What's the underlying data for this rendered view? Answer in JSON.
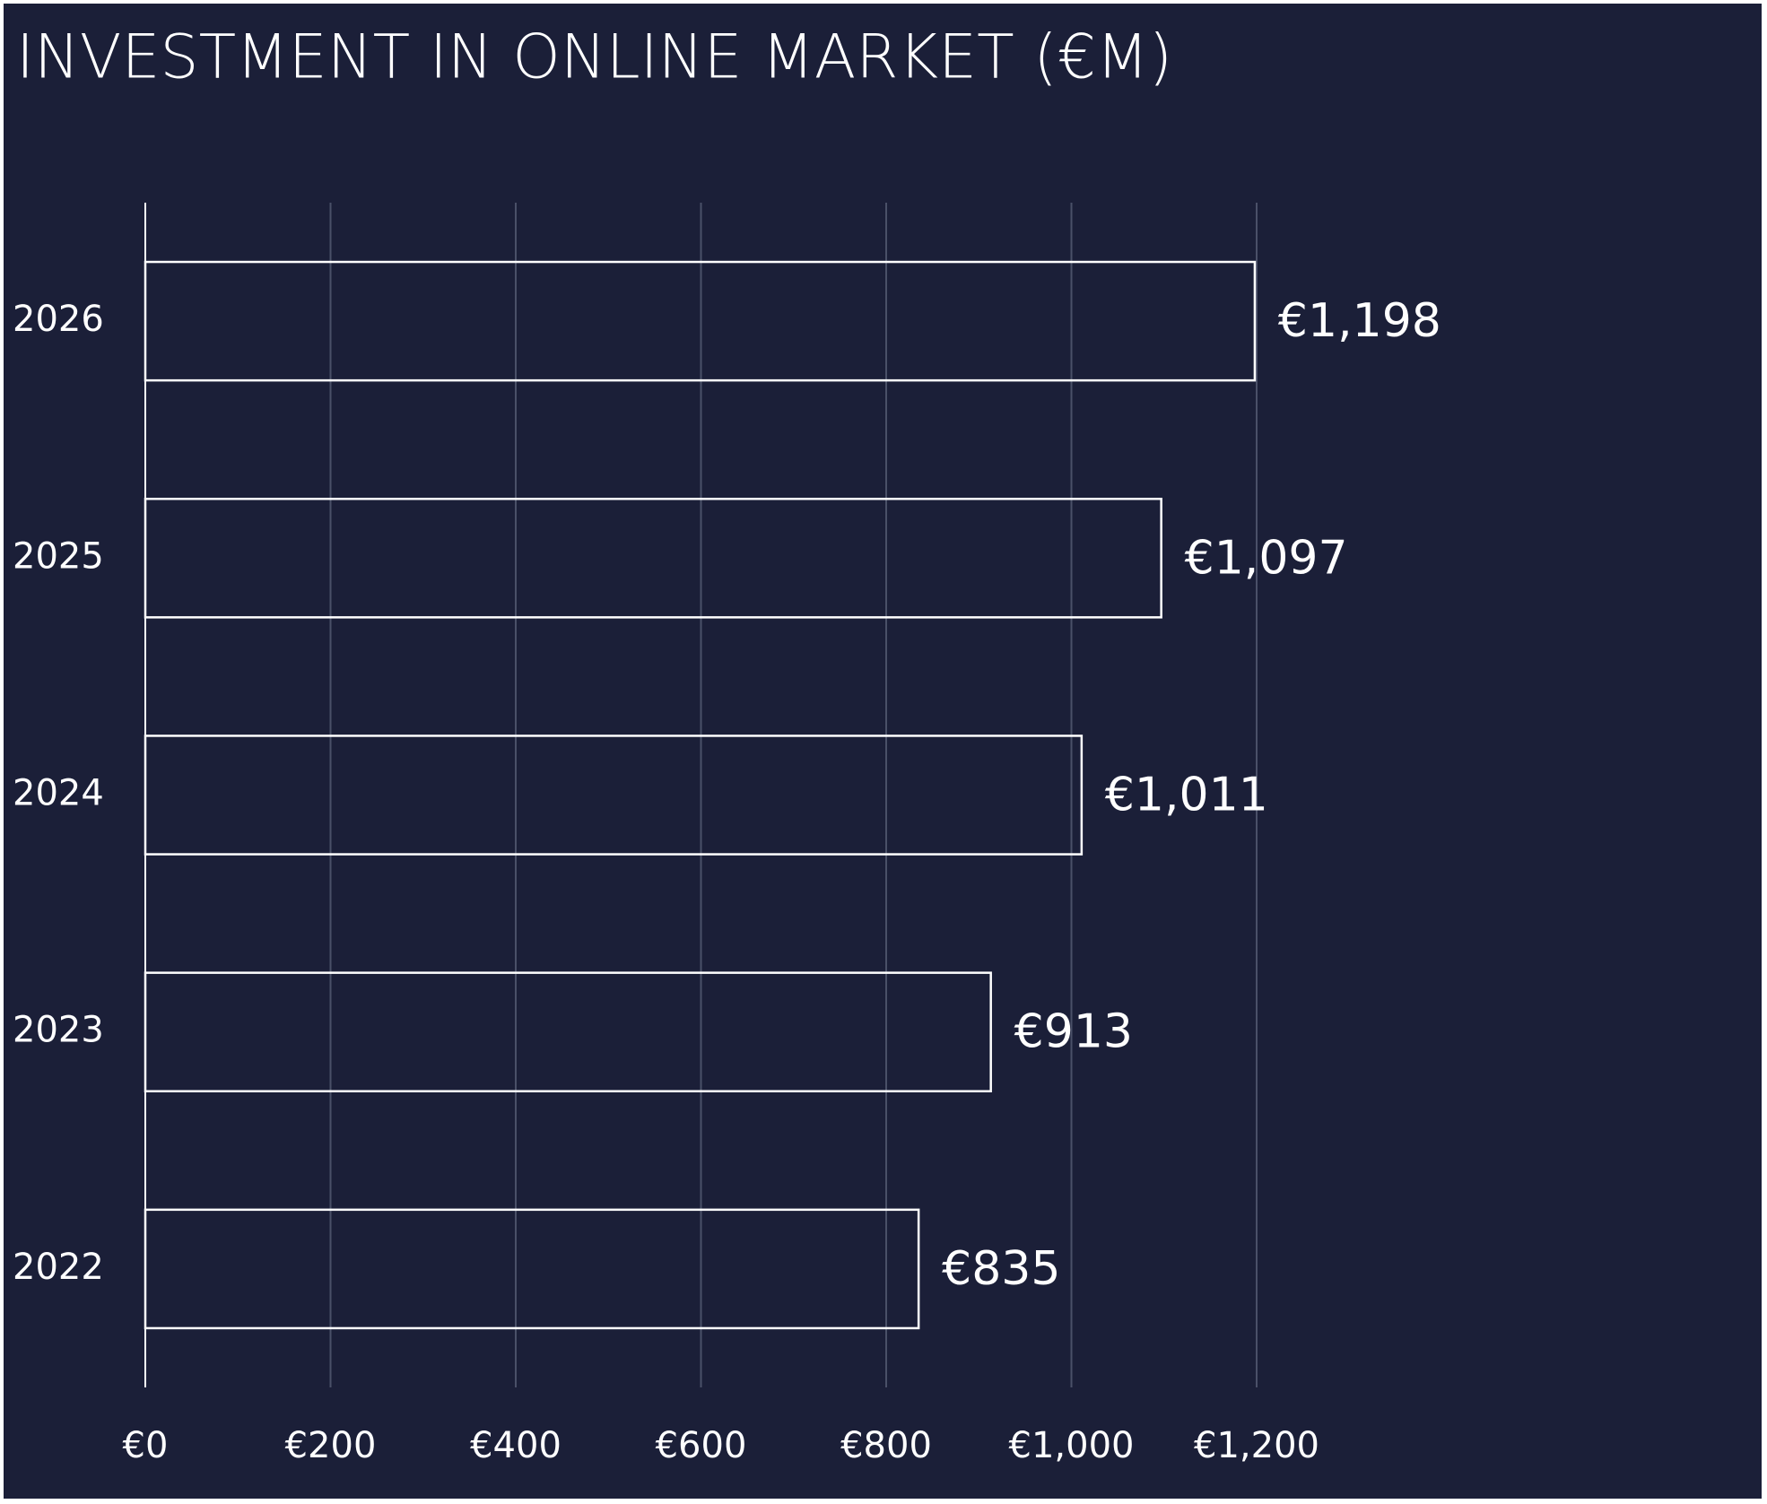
{
  "chart_data": {
    "type": "barh",
    "title": "INVESTMENT IN ONLINE MARKET (€M)",
    "categories": [
      "2022",
      "2023",
      "2024",
      "2025",
      "2026"
    ],
    "values": [
      835,
      913,
      1011,
      1097,
      1198
    ],
    "value_labels": [
      "€835",
      "€913",
      "€1,011",
      "€1,097",
      "€1,198"
    ],
    "color": "#ffffff",
    "xlim": [
      0,
      1200
    ],
    "xticks": [
      {
        "value": 0,
        "label": "€0"
      },
      {
        "value": 200,
        "label": "€200"
      },
      {
        "value": 400,
        "label": "€400"
      },
      {
        "value": 600,
        "label": "€600"
      },
      {
        "value": 800,
        "label": "€800"
      },
      {
        "value": 1000,
        "label": "€1,000"
      },
      {
        "value": 1200,
        "label": "€1,200"
      }
    ],
    "grid": true
  }
}
